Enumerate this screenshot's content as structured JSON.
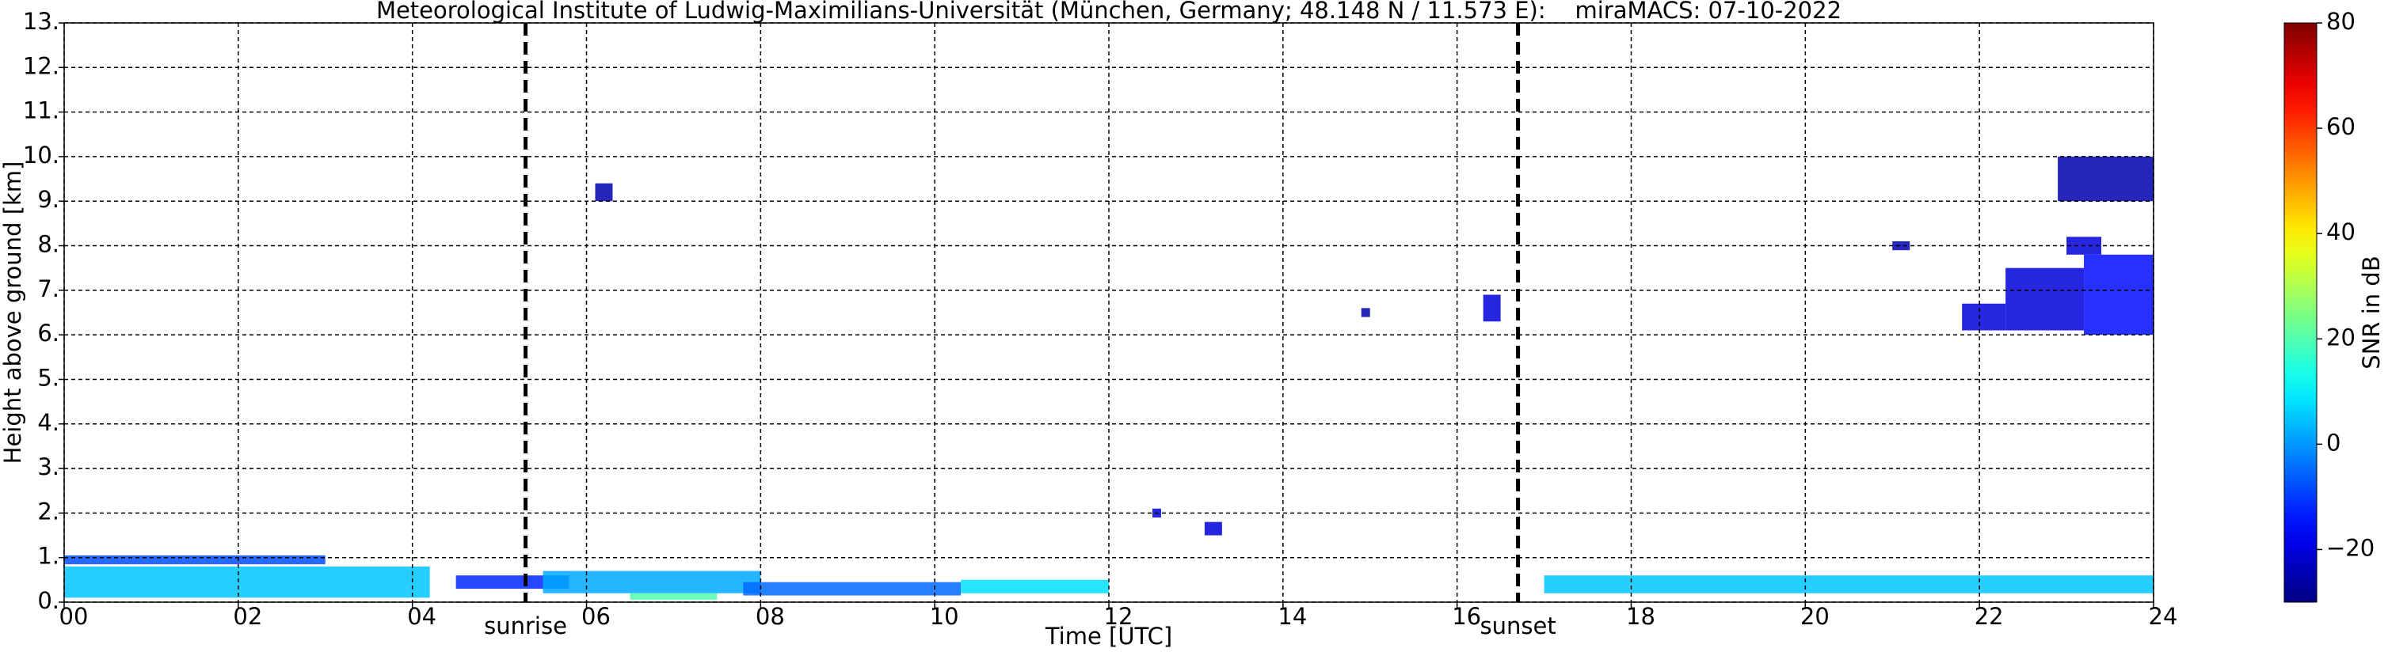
{
  "chart_data": {
    "type": "heatmap",
    "title": "Meteorological Institute of Ludwig-Maximilians-Universität (München, Germany; 48.148 N / 11.573 E):    miraMACS: 07-10-2022",
    "x_label": "Time [UTC]",
    "y_label": "Height above ground [km]",
    "colorbar_label": "SNR in dB",
    "colormap": "jet",
    "grid": true,
    "xlim": [
      0,
      24
    ],
    "xticks": [
      {
        "value": 0,
        "label": "00"
      },
      {
        "value": 2,
        "label": "02"
      },
      {
        "value": 4,
        "label": "04"
      },
      {
        "value": 6,
        "label": "06"
      },
      {
        "value": 8,
        "label": "08"
      },
      {
        "value": 10,
        "label": "10"
      },
      {
        "value": 12,
        "label": "12"
      },
      {
        "value": 14,
        "label": "14"
      },
      {
        "value": 16,
        "label": "16"
      },
      {
        "value": 18,
        "label": "18"
      },
      {
        "value": 20,
        "label": "20"
      },
      {
        "value": 22,
        "label": "22"
      },
      {
        "value": 24,
        "label": "24"
      }
    ],
    "ylim": [
      0,
      13
    ],
    "yticks": [
      {
        "value": 0,
        "label": "0."
      },
      {
        "value": 1,
        "label": "1."
      },
      {
        "value": 2,
        "label": "2."
      },
      {
        "value": 3,
        "label": "3."
      },
      {
        "value": 4,
        "label": "4."
      },
      {
        "value": 5,
        "label": "5."
      },
      {
        "value": 6,
        "label": "6."
      },
      {
        "value": 7,
        "label": "7."
      },
      {
        "value": 8,
        "label": "8."
      },
      {
        "value": 9,
        "label": "9."
      },
      {
        "value": 10,
        "label": "10."
      },
      {
        "value": 11,
        "label": "11."
      },
      {
        "value": 12,
        "label": "12."
      },
      {
        "value": 13,
        "label": "13."
      }
    ],
    "clim": [
      -30,
      80
    ],
    "cticks": [
      {
        "value": -20,
        "label": "−20"
      },
      0,
      20,
      40,
      60,
      80
    ],
    "annotations": [
      {
        "text": "sunrise",
        "x": 5.3
      },
      {
        "text": "sunset",
        "x": 16.7
      }
    ],
    "regions": [
      {
        "x": [
          0,
          3.0
        ],
        "y": [
          0.85,
          1.05
        ],
        "value": -8
      },
      {
        "x": [
          0,
          4.2
        ],
        "y": [
          0.1,
          0.8
        ],
        "value": 5
      },
      {
        "x": [
          4.5,
          5.8
        ],
        "y": [
          0.3,
          0.6
        ],
        "value": -12
      },
      {
        "x": [
          5.5,
          8.0
        ],
        "y": [
          0.2,
          0.7
        ],
        "value": 2
      },
      {
        "x": [
          6.5,
          7.5
        ],
        "y": [
          0.05,
          0.2
        ],
        "value": 20
      },
      {
        "x": [
          7.8,
          10.3
        ],
        "y": [
          0.15,
          0.45
        ],
        "value": -5
      },
      {
        "x": [
          10.3,
          12.0
        ],
        "y": [
          0.2,
          0.5
        ],
        "value": 8
      },
      {
        "x": [
          6.1,
          6.3
        ],
        "y": [
          9.0,
          9.4
        ],
        "value": -25
      },
      {
        "x": [
          12.5,
          12.6
        ],
        "y": [
          1.9,
          2.1
        ],
        "value": -20
      },
      {
        "x": [
          13.1,
          13.3
        ],
        "y": [
          1.5,
          1.8
        ],
        "value": -20
      },
      {
        "x": [
          14.9,
          15.0
        ],
        "y": [
          6.4,
          6.6
        ],
        "value": -25
      },
      {
        "x": [
          16.3,
          16.5
        ],
        "y": [
          6.3,
          6.9
        ],
        "value": -20
      },
      {
        "x": [
          17.0,
          24.0
        ],
        "y": [
          0.2,
          0.6
        ],
        "value": 5
      },
      {
        "x": [
          21.8,
          22.3
        ],
        "y": [
          6.1,
          6.7
        ],
        "value": -20
      },
      {
        "x": [
          22.3,
          23.2
        ],
        "y": [
          6.1,
          7.5
        ],
        "value": -20
      },
      {
        "x": [
          23.2,
          24.0
        ],
        "y": [
          6.0,
          7.8
        ],
        "value": -15
      },
      {
        "x": [
          22.9,
          24.0
        ],
        "y": [
          9.0,
          10.0
        ],
        "value": -25
      },
      {
        "x": [
          23.0,
          23.4
        ],
        "y": [
          7.8,
          8.2
        ],
        "value": -20
      },
      {
        "x": [
          21.0,
          21.2
        ],
        "y": [
          7.9,
          8.1
        ],
        "value": -25
      }
    ]
  }
}
